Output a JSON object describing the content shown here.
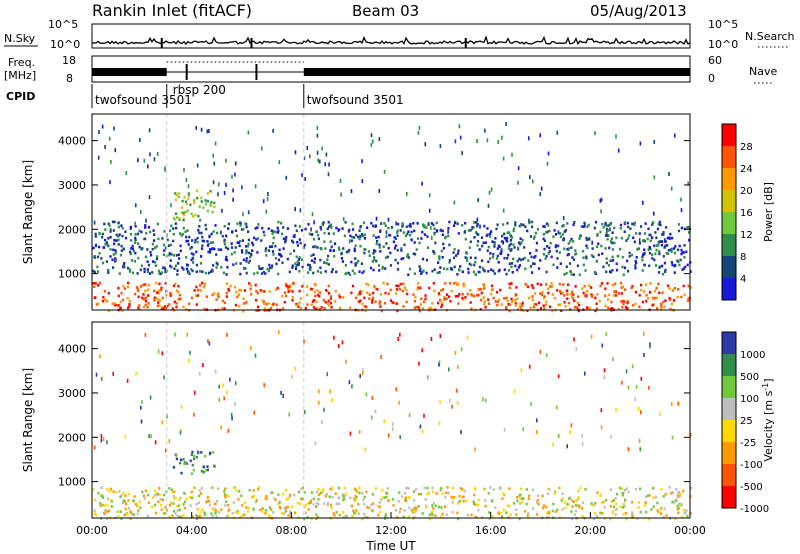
{
  "header": {
    "station": "Rankin Inlet (fitACF)",
    "beam": "Beam 03",
    "date": "05/Aug/2013"
  },
  "top_panels": {
    "nsky_label": "N.Sky",
    "nsearch_label": "N.Search",
    "nsky_ticks": [
      "10^5",
      "10^0"
    ],
    "nsky_right_ticks": [
      "10^5",
      "10^0"
    ],
    "freq_label_1": "Freq.",
    "freq_label_2": "[MHz]",
    "freq_ticks": [
      "18",
      "8"
    ],
    "nave_ticks": [
      "60",
      "0"
    ],
    "nave_label": "Nave",
    "cpid_label": "CPID",
    "cpid_segments": [
      {
        "name": "twofsound 3501",
        "start_h": 0.0,
        "end_h": 3.0
      },
      {
        "name": "rbsp 200",
        "start_h": 3.0,
        "end_h": 8.5
      },
      {
        "name": "twofsound 3501",
        "start_h": 8.5,
        "end_h": 24.0
      }
    ]
  },
  "chart_data": [
    {
      "type": "heatmap",
      "title": "",
      "xlabel": "",
      "ylabel": "Slant Range [km]",
      "xlim": [
        0,
        24
      ],
      "ylim": [
        180,
        4600
      ],
      "yticks": [
        "1000",
        "2000",
        "3000",
        "4000"
      ],
      "colorbar": {
        "label": "Power [dB]",
        "ticks": [
          "28",
          "24",
          "20",
          "16",
          "12",
          "8",
          "4"
        ],
        "colors": [
          "#ff0000",
          "#ff5500",
          "#ff9900",
          "#d2c400",
          "#6fc93a",
          "#2f8f4a",
          "#13447a",
          "#1818d8"
        ]
      },
      "features": [
        {
          "desc": "near-range band",
          "t0": 0.0,
          "t1": 24.0,
          "r0": 180,
          "r1": 820,
          "level": "high"
        },
        {
          "desc": "mid-range echoes",
          "t0": 0.0,
          "t1": 24.0,
          "r0": 1000,
          "r1": 2200,
          "level": "low"
        },
        {
          "desc": "patch",
          "t0": 3.2,
          "t1": 4.9,
          "r0": 2200,
          "r1": 2900,
          "level": "mid"
        }
      ]
    },
    {
      "type": "heatmap",
      "title": "",
      "xlabel": "Time UT",
      "ylabel": "Slant Range [km]",
      "xlim": [
        0,
        24
      ],
      "ylim": [
        180,
        4600
      ],
      "xticks": [
        "00:00",
        "04:00",
        "08:00",
        "12:00",
        "16:00",
        "20:00",
        "00:00"
      ],
      "yticks": [
        "1000",
        "2000",
        "3000",
        "4000"
      ],
      "colorbar": {
        "label": "Velocity [m s^-1]",
        "ticks": [
          "1000",
          "500",
          "100",
          "25",
          "-25",
          "-100",
          "-500",
          "-1000"
        ],
        "colors": [
          "#2a3aa8",
          "#2f8f4a",
          "#6fc93a",
          "#bebebe",
          "#ffd800",
          "#ff9900",
          "#ff5500",
          "#ff0000"
        ]
      },
      "features": [
        {
          "desc": "near-range band",
          "t0": 0.0,
          "t1": 24.0,
          "r0": 180,
          "r1": 900,
          "level": "mixed"
        },
        {
          "desc": "patch",
          "t0": 3.2,
          "t1": 4.9,
          "r0": 1200,
          "r1": 1700,
          "level": "positive"
        }
      ]
    }
  ]
}
